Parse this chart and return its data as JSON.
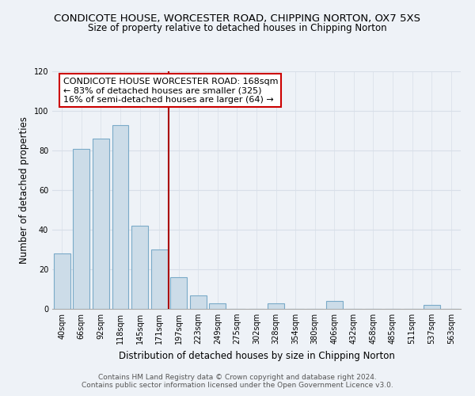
{
  "title": "CONDICOTE HOUSE, WORCESTER ROAD, CHIPPING NORTON, OX7 5XS",
  "subtitle": "Size of property relative to detached houses in Chipping Norton",
  "xlabel": "Distribution of detached houses by size in Chipping Norton",
  "ylabel": "Number of detached properties",
  "bar_color": "#ccdce8",
  "bar_edge_color": "#7aaac8",
  "categories": [
    "40sqm",
    "66sqm",
    "92sqm",
    "118sqm",
    "145sqm",
    "171sqm",
    "197sqm",
    "223sqm",
    "249sqm",
    "275sqm",
    "302sqm",
    "328sqm",
    "354sqm",
    "380sqm",
    "406sqm",
    "432sqm",
    "458sqm",
    "485sqm",
    "511sqm",
    "537sqm",
    "563sqm"
  ],
  "values": [
    28,
    81,
    86,
    93,
    42,
    30,
    16,
    7,
    3,
    0,
    0,
    3,
    0,
    0,
    4,
    0,
    0,
    0,
    0,
    2,
    0
  ],
  "ylim": [
    0,
    120
  ],
  "yticks": [
    0,
    20,
    40,
    60,
    80,
    100,
    120
  ],
  "vline_x": 5.5,
  "vline_color": "#aa0000",
  "annotation_title": "CONDICOTE HOUSE WORCESTER ROAD: 168sqm",
  "annotation_line1": "← 83% of detached houses are smaller (325)",
  "annotation_line2": "16% of semi-detached houses are larger (64) →",
  "footer1": "Contains HM Land Registry data © Crown copyright and database right 2024.",
  "footer2": "Contains public sector information licensed under the Open Government Licence v3.0.",
  "bg_color": "#eef2f7",
  "plot_bg_color": "#eef2f7",
  "grid_color": "#d8dfe8",
  "title_fontsize": 9.5,
  "subtitle_fontsize": 8.5,
  "axis_label_fontsize": 8.5,
  "tick_fontsize": 7,
  "annotation_fontsize": 8,
  "footer_fontsize": 6.5
}
